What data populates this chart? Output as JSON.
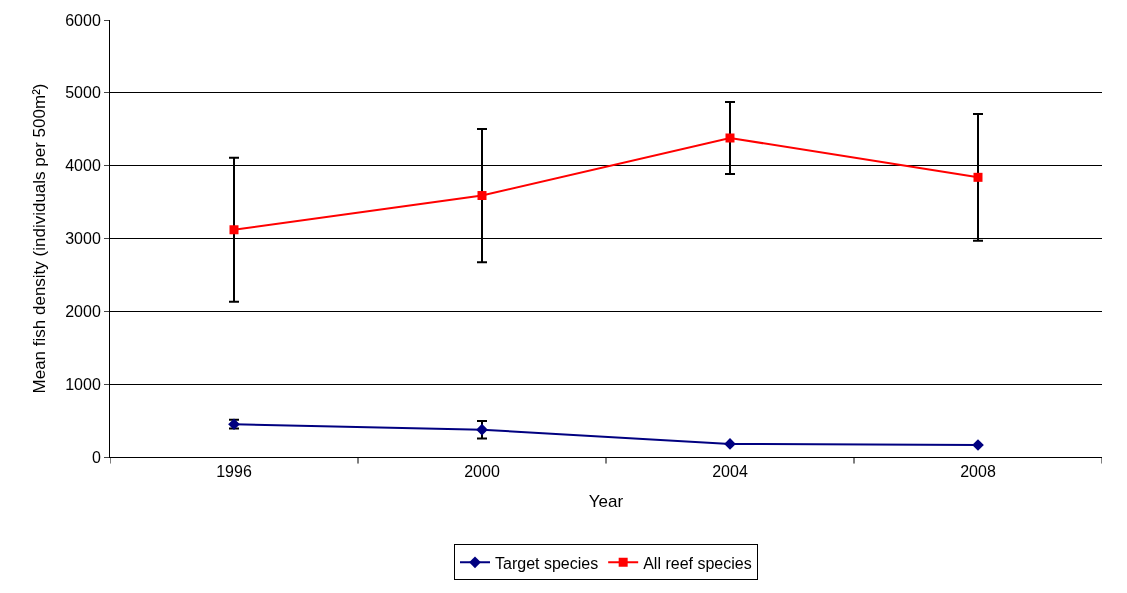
{
  "chart_data": {
    "type": "line",
    "xlabel": "Year",
    "ylabel": "Mean fish density (individuals per 500m²)",
    "categories": [
      "1996",
      "2000",
      "2004",
      "2008"
    ],
    "series": [
      {
        "name": "Target species",
        "color": "#000080",
        "marker": "diamond",
        "values": [
          450,
          375,
          180,
          165
        ],
        "errors": [
          60,
          120,
          null,
          null
        ]
      },
      {
        "name": "All reef species",
        "color": "#ff0000",
        "marker": "square",
        "values": [
          3120,
          3590,
          4380,
          3840
        ],
        "errors": [
          990,
          915,
          495,
          870
        ]
      }
    ],
    "ylim": [
      0,
      6000
    ],
    "yticks": [
      0,
      1000,
      2000,
      3000,
      4000,
      5000,
      6000
    ],
    "grid": "y",
    "legend": "bottom",
    "line_style": "solid"
  }
}
